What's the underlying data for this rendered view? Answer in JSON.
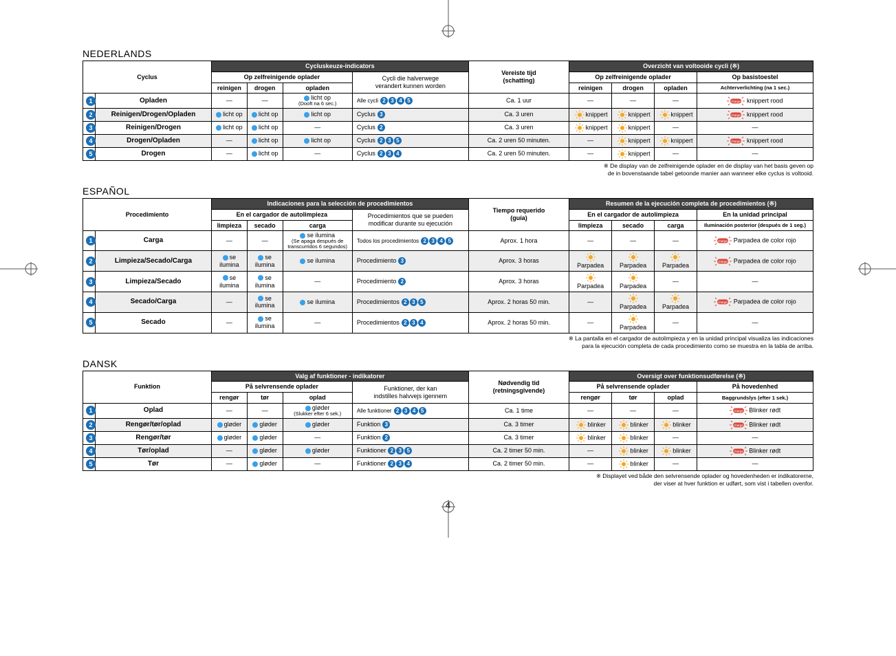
{
  "page_number": "4",
  "colors": {
    "header_dark": "#444444",
    "row_alt": "#ededed",
    "badge_blue": "#1b6fb5",
    "led_blue": "#3aa0e8",
    "blink_orange": "#f6a623",
    "charge_red": "#d9483b"
  },
  "dash": "—",
  "sections": [
    {
      "lang_title": "NEDERLANDS",
      "footnote": "※ De display van de zelfreinigende oplader en de display van het basis geven op\nde in bovenstaande tabel getoonde manier aan wanneer elke cyclus is voltooid.",
      "headers": {
        "col_proc": "Cyclus",
        "grp_indicators": "Cycluskeuze-indicators",
        "sub_grp_charger": "Op zelfreinigende oplader",
        "c_clean": "reinigen",
        "c_dry": "drogen",
        "c_charge": "opladen",
        "col_switch": "Cycli die halverwege\nverandert kunnen worden",
        "col_time": "Vereiste tijd\n(schatting)",
        "grp_done": "Overzicht van voltooide cycli (※)",
        "sub_grp_charger2": "Op zelfreinigende oplader",
        "sub_mainunit": "Op basistoestel",
        "d_clean": "reinigen",
        "d_dry": "drogen",
        "d_charge": "opladen",
        "d_back": "Achterverlichting (na 1 sec.)"
      },
      "led_label": "licht op",
      "led_label_extra": "(Dooft na 6 sec.)",
      "blink_label": "knippert",
      "charge_label": "knippert rood",
      "switch_word_single": "Cyclus",
      "switch_word_all": "Alle cycli",
      "rows": [
        {
          "n": "1",
          "name": "Opladen",
          "c": [
            "",
            "",
            "led_extra"
          ],
          "switch": {
            "t": "all",
            "ids": [
              "2",
              "3",
              "4",
              "5"
            ]
          },
          "time": "Ca. 1 uur",
          "d": [
            "",
            "",
            "",
            "charge"
          ]
        },
        {
          "n": "2",
          "name": "Reinigen/Drogen/Opladen",
          "c": [
            "led",
            "led",
            "led"
          ],
          "switch": {
            "t": "single",
            "ids": [
              "3"
            ]
          },
          "time": "Ca. 3 uren",
          "d": [
            "blink",
            "blink",
            "blink",
            "charge"
          ]
        },
        {
          "n": "3",
          "name": "Reinigen/Drogen",
          "c": [
            "led",
            "led",
            ""
          ],
          "switch": {
            "t": "single",
            "ids": [
              "2"
            ]
          },
          "time": "Ca. 3 uren",
          "d": [
            "blink",
            "blink",
            "",
            ""
          ]
        },
        {
          "n": "4",
          "name": "Drogen/Opladen",
          "c": [
            "",
            "led",
            "led"
          ],
          "switch": {
            "t": "multi",
            "w": "Cyclus",
            "ids": [
              "2",
              "3",
              "5"
            ]
          },
          "time": "Ca. 2 uren 50 minuten.",
          "d": [
            "",
            "blink",
            "blink",
            "charge"
          ]
        },
        {
          "n": "5",
          "name": "Drogen",
          "c": [
            "",
            "led",
            ""
          ],
          "switch": {
            "t": "multi",
            "w": "Cyclus",
            "ids": [
              "2",
              "3",
              "4"
            ]
          },
          "time": "Ca. 2 uren 50 minuten.",
          "d": [
            "",
            "blink",
            "",
            ""
          ]
        }
      ]
    },
    {
      "lang_title": "ESPAÑOL",
      "footnote": "※ La pantalla en el cargador de autolimpieza y en la unidad principal visualiza las indicaciones\npara la ejecución completa de cada procedimiento como se muestra en la tabla de arriba.",
      "headers": {
        "col_proc": "Procedimiento",
        "grp_indicators": "Indicaciones para la selección de procedimientos",
        "sub_grp_charger": "En el cargador de autolimpieza",
        "c_clean": "limpieza",
        "c_dry": "secado",
        "c_charge": "carga",
        "col_switch": "Procedimientos que se pueden\nmodificar durante su ejecución",
        "col_time": "Tiempo requerido\n(guía)",
        "grp_done": "Resumen de la ejecución completa de procedimientos (※)",
        "sub_grp_charger2": "En el cargador de autolimpieza",
        "sub_mainunit": "En la unidad principal",
        "d_clean": "limpieza",
        "d_dry": "secado",
        "d_charge": "carga",
        "d_back": "Iluminación posterior (después de 1 seg.)"
      },
      "led_label": "se ilumina",
      "led_label_extra": "(Se apaga después de transcurridos 6 segundos)",
      "blink_label": "Parpadea",
      "charge_label": "Parpadea de color rojo",
      "switch_word_single": "Procedimiento",
      "switch_word_all": "Todos los procedimientos",
      "rows": [
        {
          "n": "1",
          "name": "Carga",
          "c": [
            "",
            "",
            "led_extra"
          ],
          "switch": {
            "t": "all",
            "ids": [
              "2",
              "3",
              "4",
              "5"
            ]
          },
          "time": "Aprox. 1 hora",
          "d": [
            "",
            "",
            "",
            "charge"
          ]
        },
        {
          "n": "2",
          "name": "Limpieza/Secado/Carga",
          "c": [
            "led",
            "led",
            "led"
          ],
          "switch": {
            "t": "single",
            "ids": [
              "3"
            ]
          },
          "time": "Aprox. 3 horas",
          "d": [
            "blink",
            "blink",
            "blink",
            "charge"
          ]
        },
        {
          "n": "3",
          "name": "Limpieza/Secado",
          "c": [
            "led",
            "led",
            ""
          ],
          "switch": {
            "t": "single",
            "ids": [
              "2"
            ]
          },
          "time": "Aprox. 3 horas",
          "d": [
            "blink",
            "blink",
            "",
            ""
          ]
        },
        {
          "n": "4",
          "name": "Secado/Carga",
          "c": [
            "",
            "led",
            "led"
          ],
          "switch": {
            "t": "multi",
            "w": "Procedimientos",
            "ids": [
              "2",
              "3",
              "5"
            ]
          },
          "time": "Aprox. 2 horas 50 min.",
          "d": [
            "",
            "blink",
            "blink",
            "charge"
          ]
        },
        {
          "n": "5",
          "name": "Secado",
          "c": [
            "",
            "led",
            ""
          ],
          "switch": {
            "t": "multi",
            "w": "Procedimientos",
            "ids": [
              "2",
              "3",
              "4"
            ]
          },
          "time": "Aprox. 2 horas 50 min.",
          "d": [
            "",
            "blink",
            "",
            ""
          ]
        }
      ]
    },
    {
      "lang_title": "DANSK",
      "footnote": "※ Displayet ved både den selvrensende oplader og hovedenheden er indikatorerne,\nder viser at hver funktion er udført, som vist i tabellen ovenfor.",
      "headers": {
        "col_proc": "Funktion",
        "grp_indicators": "Valg af funktioner - indikatorer",
        "sub_grp_charger": "På selvrensende oplader",
        "c_clean": "rengør",
        "c_dry": "tør",
        "c_charge": "oplad",
        "col_switch": "Funktioner, der kan\nindstilles halvvejs igennem",
        "col_time": "Nødvendig tid\n(retningsgivende)",
        "grp_done": "Oversigt over funktionsudførelse (※)",
        "sub_grp_charger2": "På selvrensende oplader",
        "sub_mainunit": "På hovedenhed",
        "d_clean": "rengør",
        "d_dry": "tør",
        "d_charge": "oplad",
        "d_back": "Baggrundslys (efter 1 sek.)"
      },
      "led_label": "gløder",
      "led_label_extra": "(Slukker efter 6 sek.)",
      "blink_label": "blinker",
      "charge_label": "Blinker rødt",
      "switch_word_single": "Funktion",
      "switch_word_all": "Alle funktioner",
      "rows": [
        {
          "n": "1",
          "name": "Oplad",
          "c": [
            "",
            "",
            "led_extra"
          ],
          "switch": {
            "t": "all",
            "ids": [
              "2",
              "3",
              "4",
              "5"
            ]
          },
          "time": "Ca. 1 time",
          "d": [
            "",
            "",
            "",
            "charge"
          ]
        },
        {
          "n": "2",
          "name": "Rengør/tør/oplad",
          "c": [
            "led",
            "led",
            "led"
          ],
          "switch": {
            "t": "single",
            "ids": [
              "3"
            ]
          },
          "time": "Ca. 3 timer",
          "d": [
            "blink",
            "blink",
            "blink",
            "charge"
          ]
        },
        {
          "n": "3",
          "name": "Rengør/tør",
          "c": [
            "led",
            "led",
            ""
          ],
          "switch": {
            "t": "single",
            "ids": [
              "2"
            ]
          },
          "time": "Ca. 3 timer",
          "d": [
            "blink",
            "blink",
            "",
            ""
          ]
        },
        {
          "n": "4",
          "name": "Tør/oplad",
          "c": [
            "",
            "led",
            "led"
          ],
          "switch": {
            "t": "multi",
            "w": "Funktioner",
            "ids": [
              "2",
              "3",
              "5"
            ]
          },
          "time": "Ca. 2 timer 50 min.",
          "d": [
            "",
            "blink",
            "blink",
            "charge"
          ]
        },
        {
          "n": "5",
          "name": "Tør",
          "c": [
            "",
            "led",
            ""
          ],
          "switch": {
            "t": "multi",
            "w": "Funktioner",
            "ids": [
              "2",
              "3",
              "4"
            ]
          },
          "time": "Ca. 2 timer 50 min.",
          "d": [
            "",
            "blink",
            "",
            ""
          ]
        }
      ]
    }
  ]
}
